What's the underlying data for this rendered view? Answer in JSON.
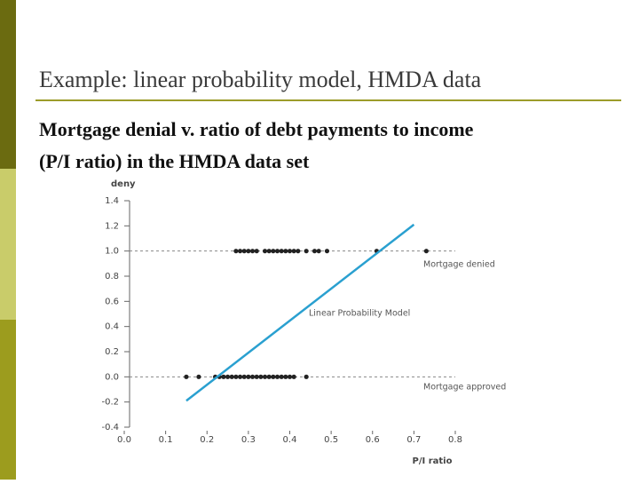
{
  "slide": {
    "title": "Example: linear probability model, HMDA data",
    "subtitle_lines": [
      "Mortgage denial v. ratio of debt payments to income",
      "(P/I ratio) in the HMDA data set"
    ]
  },
  "chart_data": {
    "type": "scatter",
    "ylabel": "deny",
    "xlabel": "P/I ratio",
    "xlim": [
      0,
      0.8
    ],
    "ylim": [
      -0.4,
      1.4
    ],
    "xticks": [
      {
        "value": 0,
        "label": "0.0"
      },
      0.1,
      0.2,
      0.3,
      0.4,
      0.5,
      0.6,
      0.7,
      0.8
    ],
    "yticks": [
      -0.4,
      -0.2,
      {
        "value": 0,
        "label": "0.0"
      },
      0.2,
      0.4,
      0.6,
      0.8,
      {
        "value": 1,
        "label": "1.0"
      },
      1.2,
      1.4
    ],
    "reference_lines": [
      1,
      0
    ],
    "points": [
      {
        "color": "#222222",
        "x": [
          0.27,
          0.28,
          0.29,
          0.3,
          0.31,
          0.32,
          0.34,
          0.35,
          0.36,
          0.37,
          0.38,
          0.39,
          0.4,
          0.41,
          0.42,
          0.44,
          0.46,
          0.47,
          0.49,
          0.61,
          0.73
        ],
        "values": [
          1,
          1,
          1,
          1,
          1,
          1,
          1,
          1,
          1,
          1,
          1,
          1,
          1,
          1,
          1,
          1,
          1,
          1,
          1,
          1,
          1
        ]
      },
      {
        "color": "#222222",
        "x": [
          0.15,
          0.18,
          0.22,
          0.23,
          0.24,
          0.25,
          0.26,
          0.27,
          0.28,
          0.29,
          0.3,
          0.31,
          0.32,
          0.33,
          0.34,
          0.35,
          0.36,
          0.37,
          0.38,
          0.39,
          0.4,
          0.41,
          0.44
        ],
        "values": [
          0,
          0,
          0,
          0,
          0,
          0,
          0,
          0,
          0,
          0,
          0,
          0,
          0,
          0,
          0,
          0,
          0,
          0,
          0,
          0,
          0,
          0,
          0
        ]
      }
    ],
    "fit_line": {
      "color": "#2aa0d0",
      "x": [
        0.15,
        0.7
      ],
      "values": [
        -0.19,
        1.21
      ]
    },
    "annotations": [
      "Mortgage denied",
      "Linear Probability Model",
      "Mortgage approved"
    ]
  }
}
